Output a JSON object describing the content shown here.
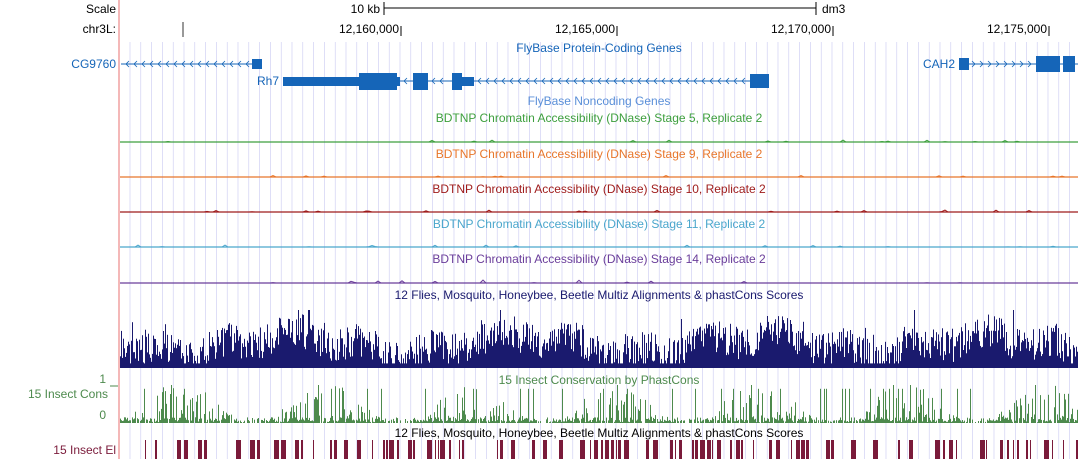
{
  "ruler": {
    "scale_label": "Scale",
    "chrom_label": "chr3L:",
    "scale_bar_label": "10 kb",
    "assembly": "dm3",
    "positions": [
      "12,160,000",
      "12,165,000",
      "12,170,000",
      "12,175,000"
    ]
  },
  "gene_tracks": {
    "coding_title": "FlyBase Protein-Coding Genes",
    "noncoding_title": "FlyBase Noncoding Genes",
    "genes": [
      "CG9760",
      "Rh7",
      "CAH2"
    ]
  },
  "dnase_tracks": [
    {
      "title": "BDTNP Chromatin Accessibility (DNase) Stage 5, Replicate 2",
      "color": "#3d9f3d"
    },
    {
      "title": "BDTNP Chromatin Accessibility (DNase) Stage 9, Replicate 2",
      "color": "#e8762b"
    },
    {
      "title": "BDTNP Chromatin Accessibility (DNase) Stage 10, Replicate 2",
      "color": "#9e1a1a"
    },
    {
      "title": "BDTNP Chromatin Accessibility (DNase) Stage 11, Replicate 2",
      "color": "#4aa6cc"
    },
    {
      "title": "BDTNP Chromatin Accessibility (DNase) Stage 14, Replicate 2",
      "color": "#6a3d9a"
    }
  ],
  "conservation": {
    "multiz_title": "12 Flies, Mosquito, Honeybee, Beetle Multiz Alignments & phastCons Scores",
    "cons_title": "15 Insect Conservation by PhastCons",
    "cons_side_label": "15 Insect Cons",
    "axis_max": "1",
    "axis_min": "0",
    "el_title": "12 Flies, Mosquito, Honeybee, Beetle Multiz Alignments & phastCons Scores",
    "el_side_label": "15 Insect El"
  },
  "colors": {
    "gene": "#1565b8",
    "multiz": "#1a1a6e",
    "cons": "#4d8a4d",
    "elements": "#7a1a3a",
    "guideline": "#c9c9f2",
    "redline": "#f0a0a0"
  }
}
